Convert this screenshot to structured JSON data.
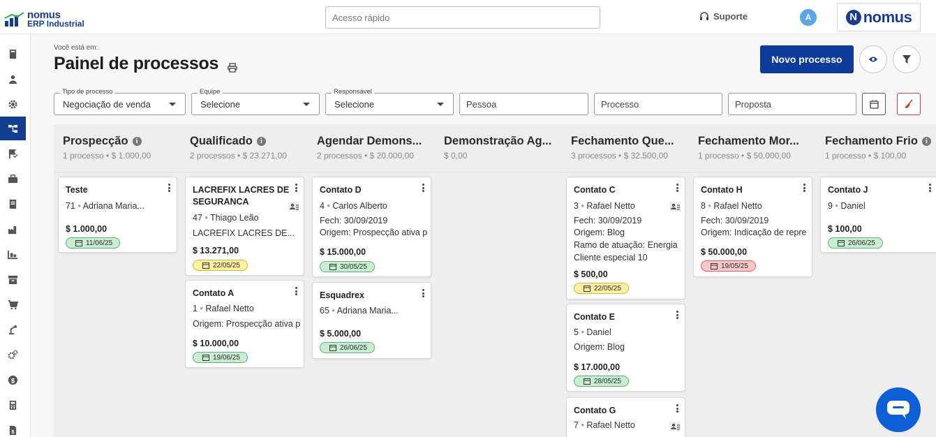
{
  "brand": {
    "line1": "nomus",
    "line2": "ERP Industrial",
    "right_logo": "nomus"
  },
  "topbar": {
    "search_placeholder": "Acesso rápido",
    "support_label": "Suporte",
    "avatar_initial": "A"
  },
  "sidebar": {
    "items": [
      {
        "icon": "book-icon"
      },
      {
        "icon": "person-icon"
      },
      {
        "icon": "gear-icon"
      },
      {
        "icon": "flow-icon",
        "active": true
      },
      {
        "icon": "flag-check-icon"
      },
      {
        "icon": "briefcase-icon"
      },
      {
        "icon": "notebook-icon"
      },
      {
        "icon": "factory-icon"
      },
      {
        "icon": "warehouse-icon"
      },
      {
        "icon": "archive-icon"
      },
      {
        "icon": "cart-icon"
      },
      {
        "icon": "robot-arm-icon"
      },
      {
        "icon": "gears-icon"
      },
      {
        "icon": "dollar-icon"
      },
      {
        "icon": "calculator-icon"
      },
      {
        "icon": "document-dollar-icon"
      }
    ]
  },
  "header": {
    "breadcrumb": "Você está em:",
    "title": "Painel de processos",
    "new_button": "Novo processo"
  },
  "filters": {
    "tipo": {
      "label": "Tipo de processo",
      "value": "Negociação de venda"
    },
    "equipe": {
      "label": "Equipe",
      "value": "Selecione"
    },
    "responsavel": {
      "label": "Responsável",
      "value": "Selecione"
    },
    "pessoa_placeholder": "Pessoa",
    "processo_placeholder": "Processo",
    "proposta_placeholder": "Proposta"
  },
  "columns": [
    {
      "name": "Prospecção",
      "info": true,
      "summary": "1 processo • $ 1.000,00"
    },
    {
      "name": "Qualificado",
      "info": true,
      "summary": "2 processos • $ 23.271,00"
    },
    {
      "name": "Agendar Demons...",
      "info": false,
      "summary": "2 processos • $ 20.000,00"
    },
    {
      "name": "Demonstração Ag...",
      "info": false,
      "summary": "$ 0,00"
    },
    {
      "name": "Fechamento Que...",
      "info": false,
      "summary": "3 processos • $ 32.500,00"
    },
    {
      "name": "Fechamento Mor...",
      "info": false,
      "summary": "1 processo • $ 50.000,00"
    },
    {
      "name": "Fechamento Frio",
      "info": true,
      "summary": "1 processo • $ 100,00"
    }
  ],
  "cards": {
    "teste": {
      "title": "Teste",
      "num": "71",
      "person": "Adriana Maria...",
      "amount": "$ 1.000,00",
      "date": "11/06/25"
    },
    "lacrefix": {
      "title1": "LACREFIX LACRES DE",
      "title2": "SEGURANCA",
      "num": "47",
      "person": "Thiago Leão",
      "extra": "LACREFIX LACRES DE...",
      "amount": "$ 13.271,00",
      "date": "22/05/25"
    },
    "contato_a": {
      "title": "Contato A",
      "num": "1",
      "person": "Rafael Netto",
      "origem": "Origem: Prospecção ativa p",
      "amount": "$ 10.000,00",
      "date": "19/06/25"
    },
    "contato_d": {
      "title": "Contato D",
      "num": "4",
      "person": "Carlos Alberto",
      "fech": "Fech: 30/09/2019",
      "origem": "Origem: Prospecção ativa p",
      "amount": "$ 15.000,00",
      "date": "30/05/25"
    },
    "esquadrex": {
      "title": "Esquadrex",
      "num": "65",
      "person": "Adriana Maria...",
      "amount": "$ 5.000,00",
      "date": "26/06/25"
    },
    "contato_c": {
      "title": "Contato C",
      "num": "3",
      "person": "Rafael Netto",
      "fech": "Fech: 30/09/2019",
      "origem": "Origem: Blog",
      "ramo": "Ramo de atuação: Energia",
      "cliente": "Cliente especial 10",
      "amount": "$ 500,00",
      "date": "22/05/25"
    },
    "contato_e": {
      "title": "Contato E",
      "num": "5",
      "person": "Daniel",
      "origem": "Origem: Blog",
      "amount": "$ 17.000,00",
      "date": "28/05/25"
    },
    "contato_g": {
      "title": "Contato G",
      "num": "7",
      "person": "Rafael Netto"
    },
    "contato_h": {
      "title": "Contato H",
      "num": "8",
      "person": "Rafael Netto",
      "fech": "Fech: 30/09/2019",
      "origem": "Origem: Indicação de repre",
      "amount": "$ 50.000,00",
      "date": "19/05/25"
    },
    "contato_j": {
      "title": "Contato J",
      "num": "9",
      "person": "Daniel",
      "amount": "$ 100,00",
      "date": "26/06/25"
    }
  },
  "colors": {
    "primary": "#0d3b9a",
    "sidebar_active": "#123d8e",
    "tag_green": "#c9ecd2",
    "tag_yellow": "#fcefa3",
    "tag_red": "#f8c8c8",
    "chat_fab": "#0d5fd6"
  }
}
